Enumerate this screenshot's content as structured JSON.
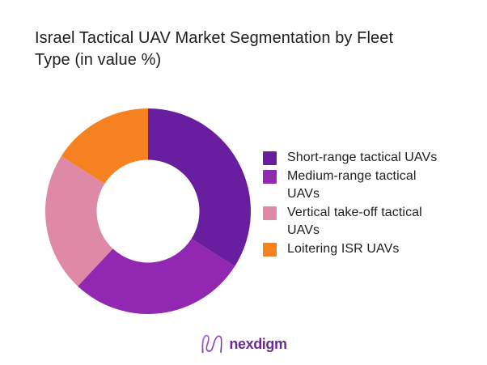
{
  "title": {
    "line1": "Israel Tactical UAV Market Segmentation by Fleet",
    "line2": "Type (in value %)",
    "color": "#1d1d1f"
  },
  "chart_data": {
    "type": "pie",
    "subtype": "donut",
    "title": "Israel Tactical UAV Market Segmentation by Fleet Type (in value %)",
    "categories": [
      "Short-range tactical UAVs",
      "Medium-range tactical UAVs",
      "Vertical take-off tactical UAVs",
      "Loitering ISR UAVs"
    ],
    "values": [
      34,
      28,
      22,
      16
    ],
    "unit": "value %",
    "colors": [
      "#691ea0",
      "#9227b1",
      "#de8aa7",
      "#f58120"
    ],
    "start_angle_deg": 0,
    "direction": "clockwise",
    "inner_radius_ratio": 0.5,
    "legend_position": "right",
    "data_labels": false
  },
  "legend": {
    "items": [
      {
        "label": "Short-range tactical UAVs",
        "lines": [
          "Short-range tactical UAVs"
        ],
        "color": "#691ea0"
      },
      {
        "label": "Medium-range tactical UAVs",
        "lines": [
          "Medium-range tactical",
          "UAVs"
        ],
        "color": "#9227b1"
      },
      {
        "label": "Vertical take-off tactical UAVs",
        "lines": [
          "Vertical take-off tactical",
          "UAVs"
        ],
        "color": "#de8aa7"
      },
      {
        "label": "Loitering ISR UAVs",
        "lines": [
          "Loitering ISR UAVs"
        ],
        "color": "#f58120"
      }
    ]
  },
  "footer": {
    "brand": "nexdigm",
    "brand_color": "#6b2b92",
    "logo_icon": "nexdigm-wave-n-icon"
  }
}
